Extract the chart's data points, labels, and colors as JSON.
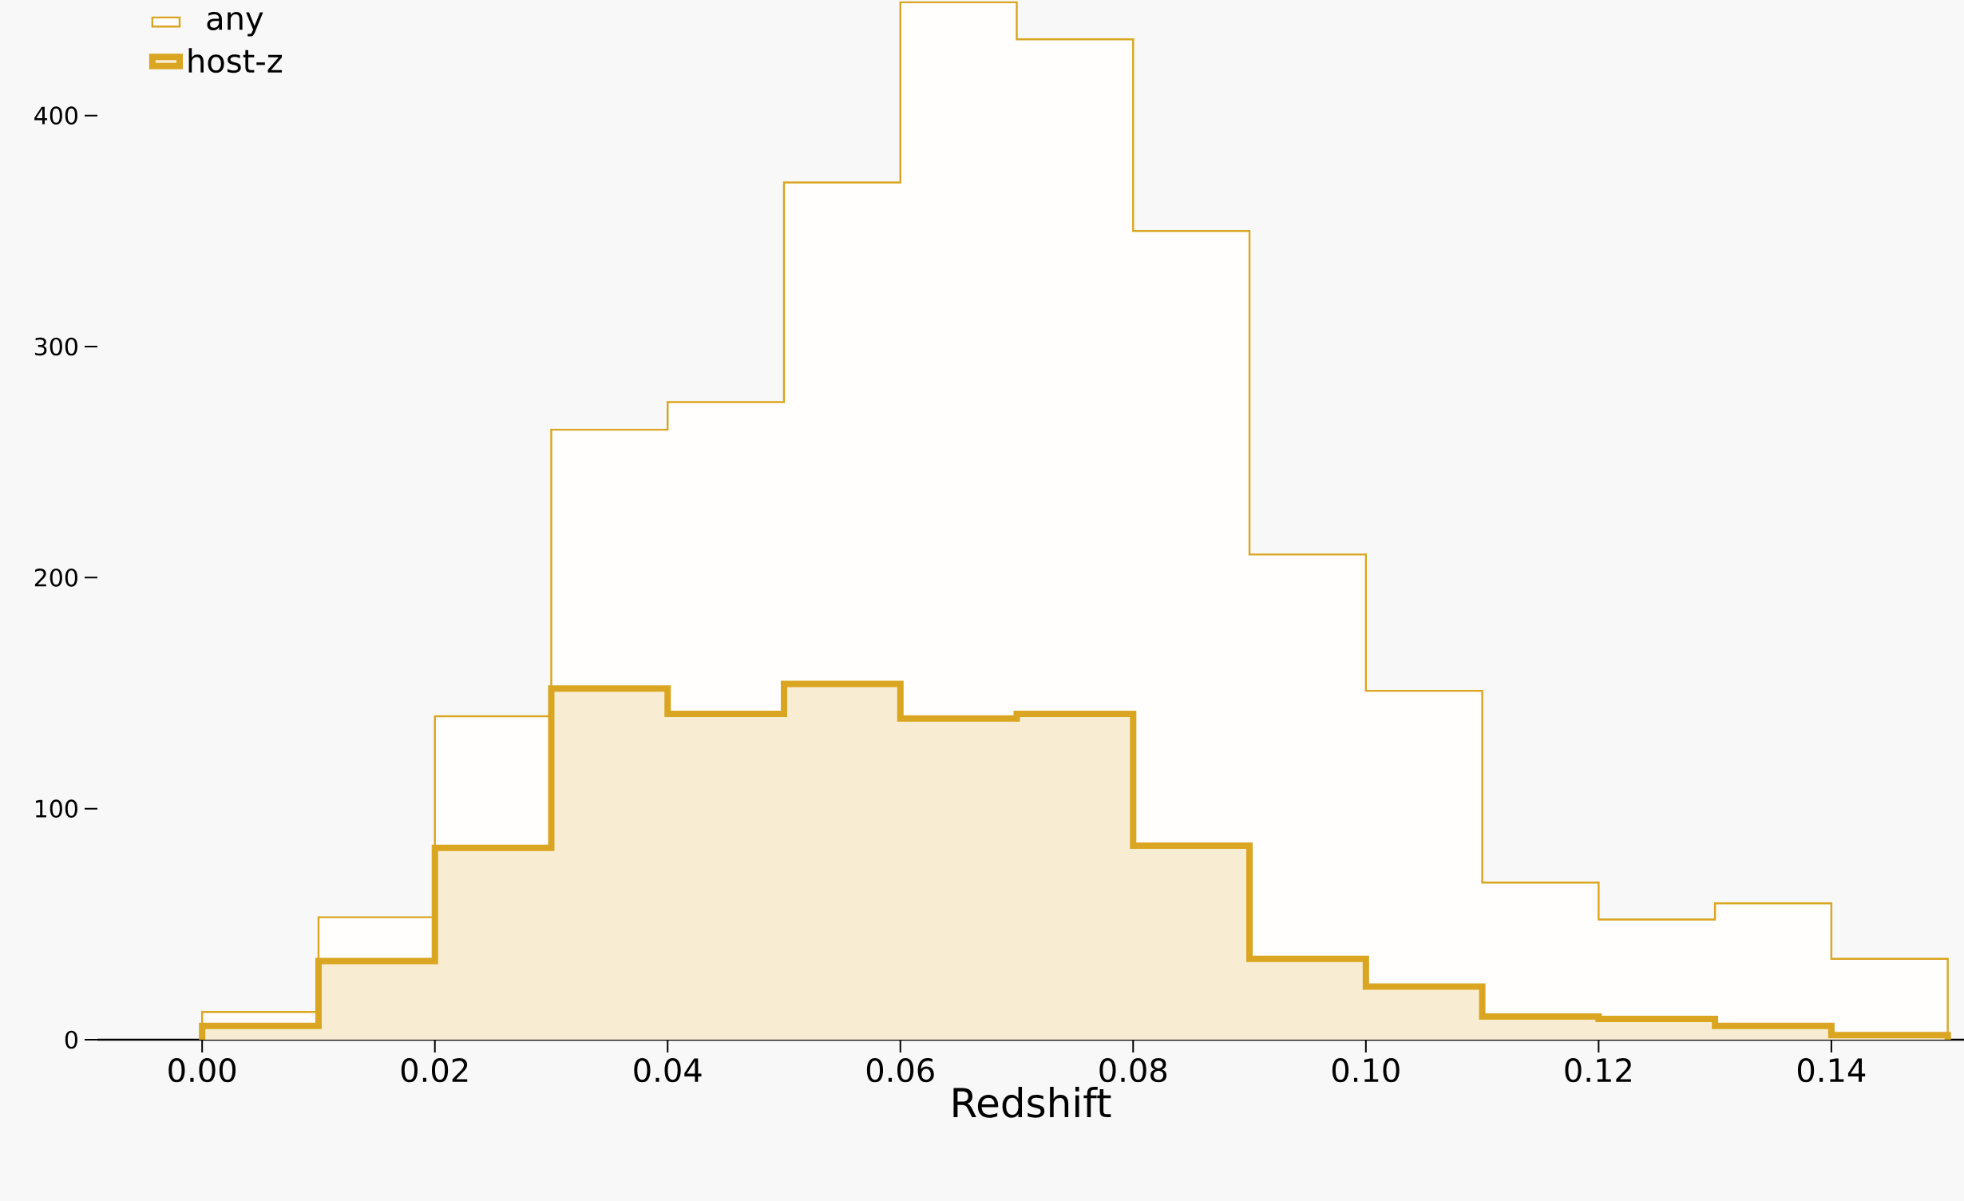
{
  "chart_data": {
    "type": "histogram",
    "xlabel": "Redshift",
    "bins": [
      0.0,
      0.01,
      0.02,
      0.03,
      0.04,
      0.05,
      0.06,
      0.07,
      0.08,
      0.09,
      0.1,
      0.11,
      0.12,
      0.13,
      0.14,
      0.15
    ],
    "series": [
      {
        "name": "any",
        "color": "#daa520",
        "values": [
          12,
          53,
          140,
          264,
          276,
          371,
          449,
          433,
          350,
          210,
          151,
          68,
          52,
          59,
          35
        ]
      },
      {
        "name": "host-z",
        "color": "#daa520",
        "values": [
          6,
          34,
          83,
          152,
          141,
          154,
          139,
          141,
          84,
          35,
          23,
          10,
          9,
          6,
          2
        ]
      }
    ],
    "xlim": [
      -0.009,
      0.1514
    ],
    "ylim": [
      0,
      450
    ],
    "xticks": [
      {
        "value": 0.0,
        "label": "0.00"
      },
      {
        "value": 0.02,
        "label": "0.02"
      },
      {
        "value": 0.04,
        "label": "0.04"
      },
      {
        "value": 0.06,
        "label": "0.06"
      },
      {
        "value": 0.08,
        "label": "0.08"
      },
      {
        "value": 0.1,
        "label": "0.10"
      },
      {
        "value": 0.12,
        "label": "0.12"
      },
      {
        "value": 0.14,
        "label": "0.14"
      }
    ],
    "yticks": [
      0,
      100,
      200,
      300,
      400
    ],
    "legend": "top left",
    "grid": false
  }
}
